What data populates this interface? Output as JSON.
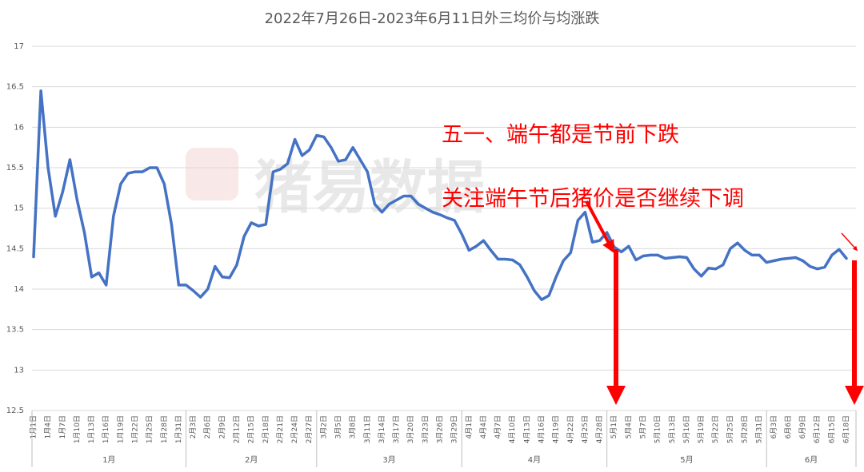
{
  "chart_data": {
    "type": "line",
    "title": "2022年7月26日-2023年6月11日外三均价与均涨跌",
    "watermark": "猪易数据",
    "annotations": [
      "五一、端午都是节前下跌",
      "关注端午节后猪价是否继续下调"
    ],
    "categories": [
      "1月1日",
      null,
      "1月4日",
      null,
      "1月7日",
      null,
      "1月10日",
      null,
      "1月13日",
      null,
      "1月16日",
      null,
      "1月19日",
      null,
      "1月22日",
      null,
      "1月25日",
      null,
      "1月28日",
      null,
      "1月31日",
      null,
      "2月3日",
      null,
      "2月6日",
      null,
      "2月9日",
      null,
      "2月12日",
      null,
      "2月15日",
      null,
      "2月18日",
      null,
      "2月21日",
      null,
      "2月24日",
      null,
      "2月27日",
      null,
      "3月2日",
      null,
      "3月5日",
      null,
      "3月8日",
      null,
      "3月11日",
      null,
      "3月14日",
      null,
      "3月17日",
      null,
      "3月20日",
      null,
      "3月23日",
      null,
      "3月26日",
      null,
      "3月29日",
      null,
      "4月1日",
      null,
      "4月4日",
      null,
      "4月7日",
      null,
      "4月10日",
      null,
      "4月13日",
      null,
      "4月16日",
      null,
      "4月19日",
      null,
      "4月22日",
      null,
      "4月25日",
      null,
      "4月28日",
      null,
      "5月1日",
      null,
      "5月4日",
      null,
      "5月7日",
      null,
      "5月10日",
      null,
      "5月13日",
      null,
      "5月16日",
      null,
      "5月19日",
      null,
      "5月22日",
      null,
      "5月25日",
      null,
      "5月28日",
      null,
      "5月31日",
      null,
      "6月3日",
      null,
      "6月6日",
      null,
      "6月9日",
      null,
      "6月12日",
      null,
      "6月15日",
      null,
      "6月18日"
    ],
    "x_groups": [
      "1月",
      "2月",
      "3月",
      "4月",
      "5月",
      "6月"
    ],
    "values": [
      14.4,
      16.45,
      15.5,
      14.9,
      15.2,
      15.6,
      15.1,
      14.7,
      14.15,
      14.2,
      14.05,
      14.9,
      15.3,
      15.43,
      15.45,
      15.45,
      15.5,
      15.5,
      15.3,
      14.8,
      14.05,
      14.05,
      13.98,
      13.9,
      14.0,
      14.28,
      14.15,
      14.14,
      14.3,
      14.65,
      14.82,
      14.78,
      14.8,
      15.45,
      15.48,
      15.55,
      15.85,
      15.65,
      15.72,
      15.9,
      15.88,
      15.75,
      15.58,
      15.6,
      15.75,
      15.6,
      15.45,
      15.05,
      14.95,
      15.05,
      15.1,
      15.15,
      15.15,
      15.05,
      15.0,
      14.95,
      14.92,
      14.88,
      14.85,
      14.68,
      14.48,
      14.53,
      14.6,
      14.48,
      14.37,
      14.37,
      14.36,
      14.3,
      14.15,
      13.98,
      13.87,
      13.92,
      14.15,
      14.35,
      14.45,
      14.85,
      14.95,
      14.58,
      14.6,
      14.7,
      14.52,
      14.46,
      14.53,
      14.36,
      14.41,
      14.42,
      14.42,
      14.38,
      14.39,
      14.4,
      14.39,
      14.25,
      14.16,
      14.26,
      14.25,
      14.3,
      14.5,
      14.57,
      14.48,
      14.42,
      14.42,
      14.33,
      14.35,
      14.37,
      14.38,
      14.39,
      14.35,
      14.28,
      14.25,
      14.27,
      14.42,
      14.49,
      14.38
    ],
    "color": "#4472c4",
    "ylim": [
      12.5,
      17
    ],
    "yticks": [
      12.5,
      13,
      13.5,
      14,
      14.5,
      15,
      15.5,
      16,
      16.5,
      17
    ],
    "grid": true
  }
}
